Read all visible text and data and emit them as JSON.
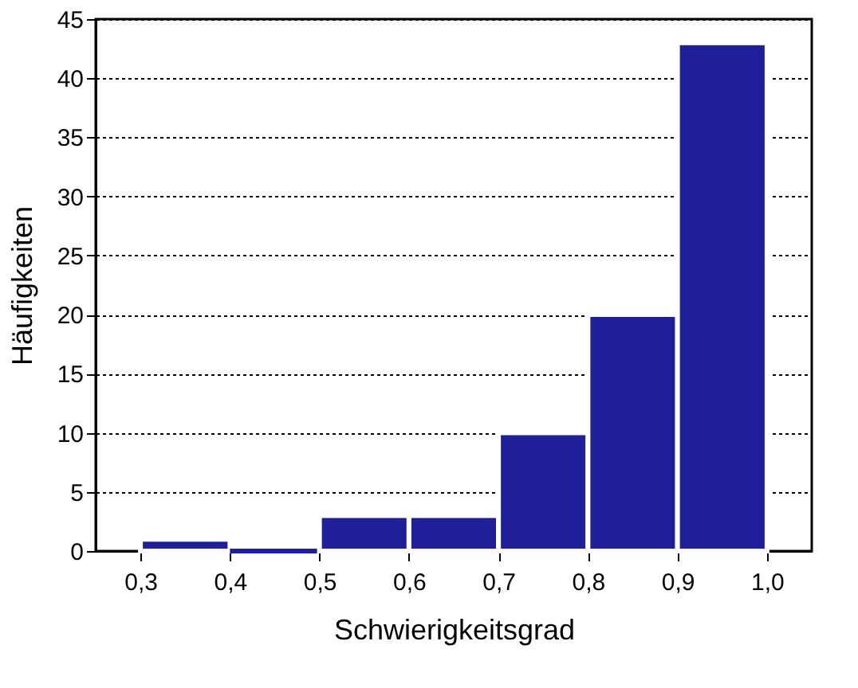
{
  "chart_data": {
    "type": "histogram",
    "xlabel": "Schwierigkeitsgrad",
    "ylabel": "Häufigkeiten",
    "bins": [
      0.3,
      0.4,
      0.5,
      0.6,
      0.7,
      0.8,
      0.9,
      1.0
    ],
    "values": [
      1,
      0,
      3,
      3,
      10,
      20,
      43
    ],
    "color": "#1f1f99",
    "xlim": [
      0.25,
      1.05
    ],
    "xticks": [
      {
        "value": 0.3,
        "label": "0,3"
      },
      {
        "value": 0.4,
        "label": "0,4"
      },
      {
        "value": 0.5,
        "label": "0,5"
      },
      {
        "value": 0.6,
        "label": "0,6"
      },
      {
        "value": 0.7,
        "label": "0,7"
      },
      {
        "value": 0.8,
        "label": "0,8"
      },
      {
        "value": 0.9,
        "label": "0,9"
      },
      {
        "value": 1.0,
        "label": "1,0"
      }
    ],
    "ylim": [
      0,
      45
    ],
    "yticks": [
      0,
      5,
      10,
      15,
      20,
      25,
      30,
      35,
      40,
      45
    ],
    "grid": "y"
  }
}
